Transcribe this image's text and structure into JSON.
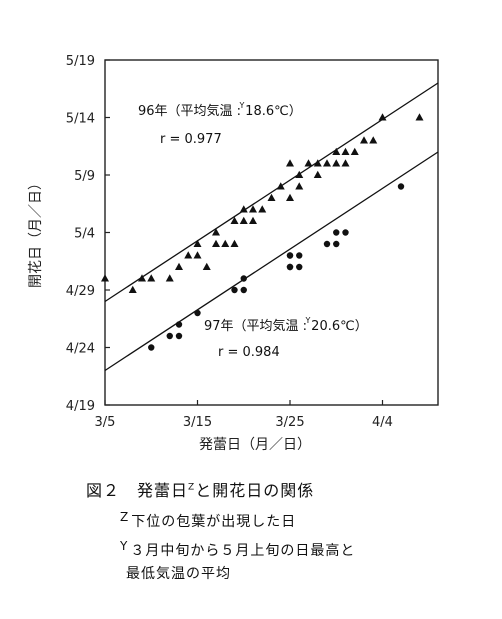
{
  "chart_data": {
    "type": "scatter",
    "xlabel": "発蕾日（月／日）",
    "ylabel": "開花日（月／日）",
    "x_ticks": [
      "3/5",
      "3/15",
      "3/25",
      "4/4"
    ],
    "y_ticks": [
      "5/19",
      "5/14",
      "5/9",
      "5/4",
      "4/29",
      "4/24",
      "4/19"
    ],
    "xlim": [
      "3/5",
      "4/10"
    ],
    "ylim": [
      "4/19",
      "5/19"
    ],
    "series": [
      {
        "name": "96年",
        "marker": "triangle",
        "points": [
          [
            "3/5",
            "4/30"
          ],
          [
            "3/8",
            "4/29"
          ],
          [
            "3/9",
            "4/30"
          ],
          [
            "3/10",
            "4/30"
          ],
          [
            "3/12",
            "4/30"
          ],
          [
            "3/13",
            "5/1"
          ],
          [
            "3/14",
            "5/2"
          ],
          [
            "3/15",
            "5/3"
          ],
          [
            "3/15",
            "5/2"
          ],
          [
            "3/16",
            "5/1"
          ],
          [
            "3/17",
            "5/4"
          ],
          [
            "3/17",
            "5/3"
          ],
          [
            "3/18",
            "5/3"
          ],
          [
            "3/19",
            "5/3"
          ],
          [
            "3/19",
            "5/5"
          ],
          [
            "3/20",
            "5/5"
          ],
          [
            "3/20",
            "5/6"
          ],
          [
            "3/21",
            "5/6"
          ],
          [
            "3/21",
            "5/5"
          ],
          [
            "3/22",
            "5/6"
          ],
          [
            "3/23",
            "5/7"
          ],
          [
            "3/24",
            "5/8"
          ],
          [
            "3/25",
            "5/10"
          ],
          [
            "3/25",
            "5/7"
          ],
          [
            "3/26",
            "5/9"
          ],
          [
            "3/26",
            "5/8"
          ],
          [
            "3/27",
            "5/10"
          ],
          [
            "3/28",
            "5/9"
          ],
          [
            "3/28",
            "5/10"
          ],
          [
            "3/29",
            "5/10"
          ],
          [
            "3/30",
            "5/11"
          ],
          [
            "3/30",
            "5/10"
          ],
          [
            "3/31",
            "5/11"
          ],
          [
            "3/31",
            "5/10"
          ],
          [
            "4/1",
            "5/11"
          ],
          [
            "4/2",
            "5/12"
          ],
          [
            "4/3",
            "5/12"
          ],
          [
            "4/4",
            "5/14"
          ],
          [
            "4/8",
            "5/14"
          ]
        ],
        "label": "96年（平均気温 : 18.6℃）",
        "label_sup": "Y",
        "r": "r = 0.977"
      },
      {
        "name": "97年",
        "marker": "circle",
        "points": [
          [
            "3/10",
            "4/24"
          ],
          [
            "3/12",
            "4/25"
          ],
          [
            "3/13",
            "4/26"
          ],
          [
            "3/13",
            "4/25"
          ],
          [
            "3/15",
            "4/27"
          ],
          [
            "3/19",
            "4/29"
          ],
          [
            "3/20",
            "4/29"
          ],
          [
            "3/20",
            "4/30"
          ],
          [
            "3/25",
            "5/2"
          ],
          [
            "3/25",
            "5/1"
          ],
          [
            "3/25",
            "5/1"
          ],
          [
            "3/25",
            "5/2"
          ],
          [
            "3/26",
            "5/1"
          ],
          [
            "3/26",
            "5/2"
          ],
          [
            "3/29",
            "5/3"
          ],
          [
            "3/30",
            "5/4"
          ],
          [
            "3/30",
            "5/3"
          ],
          [
            "3/31",
            "5/4"
          ],
          [
            "4/6",
            "5/8"
          ]
        ],
        "label": "97年（平均気温 : 20.6℃）",
        "label_sup": "Y",
        "r": "r = 0.984"
      }
    ],
    "regression_lines": [
      {
        "series": "96年",
        "from": [
          "3/5",
          "4/28"
        ],
        "to": [
          "4/10",
          "5/17"
        ]
      },
      {
        "series": "97年",
        "from": [
          "3/5",
          "4/22"
        ],
        "to": [
          "4/10",
          "5/11"
        ]
      }
    ]
  },
  "caption": {
    "title_pre": "図２　発蕾日",
    "sup": "Z",
    "title_post": "と開花日の関係"
  },
  "notes": [
    {
      "mark": "Z",
      "text": "下位の包葉が出現した日"
    },
    {
      "mark": "Y",
      "text": "３月中旬から５月上旬の日最高と"
    },
    {
      "mark": "",
      "text": "最低気温の平均"
    }
  ]
}
